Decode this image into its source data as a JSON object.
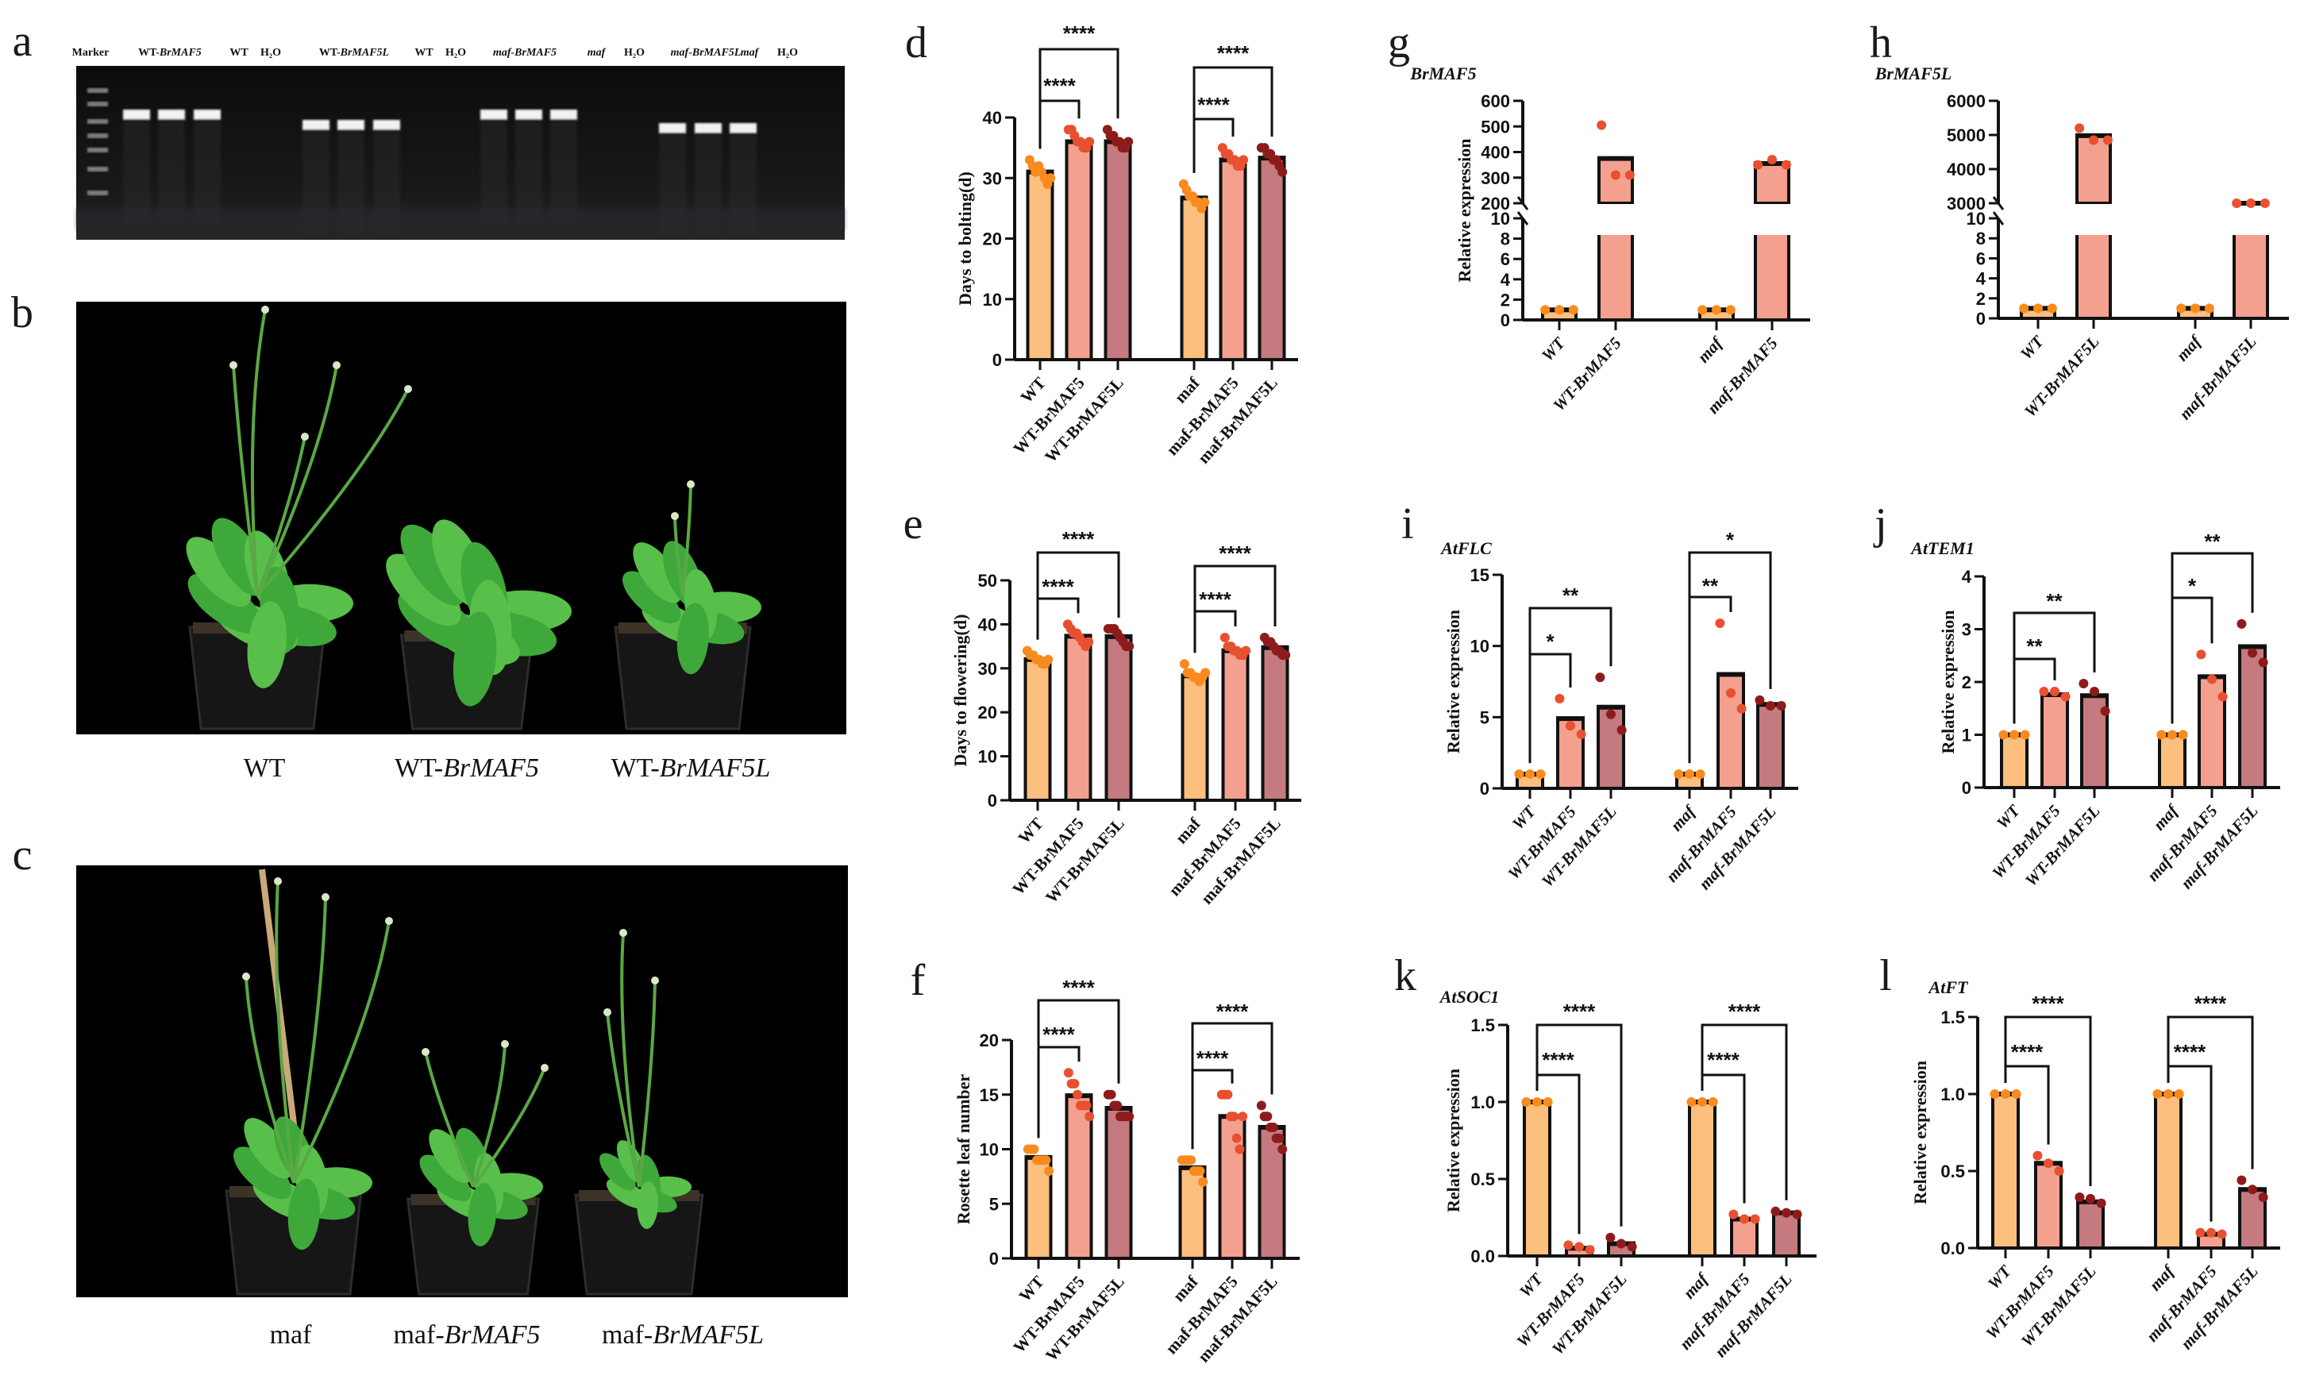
{
  "panel_letters": {
    "a": "a",
    "b": "b",
    "c": "c",
    "d": "d",
    "e": "e",
    "f": "f",
    "g": "g",
    "h": "h",
    "i": "i",
    "j": "j",
    "k": "k",
    "l": "l"
  },
  "gel": {
    "lanes": [
      {
        "plain": "Marker",
        "italic": ""
      },
      {
        "plain": "WT-",
        "italic": "BrMAF5"
      },
      {
        "plain": "WT",
        "italic": ""
      },
      {
        "plain": "H₂O",
        "italic": ""
      },
      {
        "plain": "WT-",
        "italic": "BrMAF5L"
      },
      {
        "plain": "WT",
        "italic": ""
      },
      {
        "plain": "H₂O",
        "italic": ""
      },
      {
        "plain": "",
        "italic": "maf-BrMAF5"
      },
      {
        "plain": "",
        "italic": "maf"
      },
      {
        "plain": "H₂O",
        "italic": ""
      },
      {
        "plain": "",
        "italic": "maf-BrMAF5L"
      },
      {
        "plain": "",
        "italic": "maf"
      },
      {
        "plain": "H₂O",
        "italic": ""
      }
    ]
  },
  "photo_b": {
    "captions": [
      {
        "plain": "WT",
        "italic": ""
      },
      {
        "plain": "WT-",
        "italic": "BrMAF5"
      },
      {
        "plain": "WT-",
        "italic": "BrMAF5L"
      }
    ]
  },
  "photo_c": {
    "captions": [
      {
        "plain": "maf",
        "italic": ""
      },
      {
        "plain": "maf-",
        "italic": "BrMAF5"
      },
      {
        "plain": "maf-",
        "italic": "BrMAF5L"
      }
    ]
  },
  "colors": {
    "bar": [
      "#FDBF7E",
      "#F4A08F",
      "#C47A7E"
    ],
    "dot": [
      "#F98B1E",
      "#E8502F",
      "#8E1B1B"
    ],
    "axis": "#111111"
  },
  "chart_data": [
    {
      "id": "d",
      "type": "bar",
      "title": "",
      "ylabel": "Days to bolting(d)",
      "italic_categories": false,
      "categories": [
        "WT",
        "WT-BrMAF5",
        "WT-BrMAF5L",
        "maf",
        "maf-BrMAF5",
        "maf-BrMAF5L"
      ],
      "values": [
        31,
        36,
        36,
        26.7,
        33,
        33.3
      ],
      "points": [
        [
          33,
          32,
          31,
          32,
          31,
          30,
          29,
          30
        ],
        [
          38,
          38,
          37,
          36,
          36,
          35,
          35,
          36
        ],
        [
          38,
          37,
          37,
          36,
          36,
          35,
          35,
          36
        ],
        [
          29,
          28,
          27,
          27,
          26,
          26,
          25,
          26
        ],
        [
          35,
          34,
          34,
          33,
          33,
          32,
          32,
          33
        ],
        [
          35,
          35,
          34,
          34,
          33,
          33,
          32,
          31
        ]
      ],
      "ylim": [
        0,
        40
      ],
      "yticks": [
        0,
        10,
        20,
        30,
        40
      ],
      "ytick_labels": [
        "0",
        "10",
        "20",
        "30",
        "40"
      ],
      "significance": [
        {
          "from": 0,
          "to": 1,
          "label": "****"
        },
        {
          "from": 0,
          "to": 2,
          "label": "****"
        },
        {
          "from": 3,
          "to": 4,
          "label": "****"
        },
        {
          "from": 3,
          "to": 5,
          "label": "****"
        }
      ]
    },
    {
      "id": "e",
      "type": "bar",
      "title": "",
      "ylabel": "Days to flowering(d)",
      "italic_categories": false,
      "categories": [
        "WT",
        "WT-BrMAF5",
        "WT-BrMAF5L",
        "maf",
        "maf-BrMAF5",
        "maf-BrMAF5L"
      ],
      "values": [
        32,
        37.3,
        37.2,
        28.3,
        34,
        34.7
      ],
      "points": [
        [
          34,
          33,
          33,
          32,
          32,
          31,
          31,
          32
        ],
        [
          40,
          39,
          38,
          38,
          37,
          36,
          35,
          36
        ],
        [
          39,
          39,
          39,
          38,
          37,
          36,
          35,
          35
        ],
        [
          31,
          29,
          29,
          28,
          28,
          27,
          28,
          29
        ],
        [
          37,
          35,
          35,
          34,
          34,
          33,
          33,
          34
        ],
        [
          37,
          36,
          36,
          35,
          34,
          34,
          33,
          33
        ]
      ],
      "ylim": [
        0,
        50
      ],
      "yticks": [
        0,
        10,
        20,
        30,
        40,
        50
      ],
      "ytick_labels": [
        "0",
        "10",
        "20",
        "30",
        "40",
        "50"
      ],
      "significance": [
        {
          "from": 0,
          "to": 1,
          "label": "****"
        },
        {
          "from": 0,
          "to": 2,
          "label": "****"
        },
        {
          "from": 3,
          "to": 4,
          "label": "****"
        },
        {
          "from": 3,
          "to": 5,
          "label": "****"
        }
      ]
    },
    {
      "id": "f",
      "type": "bar",
      "title": "",
      "ylabel": "Rosette leaf number",
      "italic_categories": false,
      "categories": [
        "WT",
        "WT-BrMAF5",
        "WT-BrMAF5L",
        "maf",
        "maf-BrMAF5",
        "maf-BrMAF5L"
      ],
      "values": [
        9.25,
        14.9,
        13.75,
        8.3,
        13,
        12
      ],
      "points": [
        [
          10,
          10,
          10,
          9,
          9,
          9,
          9,
          8
        ],
        [
          17,
          16,
          16,
          15,
          14,
          14,
          14,
          13
        ],
        [
          15,
          15,
          14,
          14,
          13,
          13,
          13,
          13
        ],
        [
          9,
          9,
          9,
          9,
          8,
          8,
          8,
          7
        ],
        [
          15,
          15,
          15,
          13,
          13,
          11,
          10,
          13
        ],
        [
          14,
          13,
          13,
          12,
          12,
          11,
          11,
          10
        ]
      ],
      "ylim": [
        0,
        20
      ],
      "yticks": [
        0,
        5,
        10,
        15,
        20
      ],
      "ytick_labels": [
        "0",
        "5",
        "10",
        "15",
        "20"
      ],
      "significance": [
        {
          "from": 0,
          "to": 1,
          "label": "****"
        },
        {
          "from": 0,
          "to": 2,
          "label": "****"
        },
        {
          "from": 3,
          "to": 4,
          "label": "****"
        },
        {
          "from": 3,
          "to": 5,
          "label": "****"
        }
      ]
    },
    {
      "id": "g",
      "type": "bar",
      "title": "BrMAF5",
      "ylabel": "Relative expression",
      "italic_categories": true,
      "categories": [
        "WT",
        "WT-BrMAF5",
        "maf",
        "maf-BrMAF5"
      ],
      "values": [
        1,
        375,
        1,
        355
      ],
      "points": [
        [
          1,
          1,
          1
        ],
        [
          505,
          310,
          310
        ],
        [
          1,
          1,
          1
        ],
        [
          350,
          370,
          350
        ]
      ],
      "broken_axis": {
        "lower": [
          0,
          10
        ],
        "upper": [
          200,
          600
        ]
      },
      "yticks": [
        0,
        2,
        4,
        6,
        8,
        10,
        200,
        300,
        400,
        500,
        600
      ],
      "ytick_labels": [
        "0",
        "2",
        "4",
        "6",
        "8",
        "10",
        "200",
        "300",
        "400",
        "500",
        "600"
      ],
      "color_index": [
        0,
        1,
        0,
        1
      ],
      "significance": []
    },
    {
      "id": "h",
      "type": "bar",
      "title": "BrMAF5L",
      "ylabel": "",
      "italic_categories": true,
      "categories": [
        "WT",
        "WT-BrMAF5L",
        "maf",
        "maf-BrMAF5L"
      ],
      "values": [
        1,
        4980,
        1,
        3000
      ],
      "points": [
        [
          1,
          1,
          1
        ],
        [
          5200,
          4850,
          4850
        ],
        [
          1,
          1,
          1
        ],
        [
          3000,
          3000,
          3000
        ]
      ],
      "broken_axis": {
        "lower": [
          0,
          10
        ],
        "upper": [
          3000,
          6000
        ]
      },
      "yticks": [
        0,
        2,
        4,
        6,
        8,
        10,
        3000,
        4000,
        5000,
        6000
      ],
      "ytick_labels": [
        "0",
        "2",
        "4",
        "6",
        "8",
        "10",
        "3000",
        "4000",
        "5000",
        "6000"
      ],
      "color_index": [
        0,
        1,
        0,
        1
      ],
      "significance": []
    },
    {
      "id": "i",
      "type": "bar",
      "title": "AtFLC",
      "ylabel": "Relative expression",
      "italic_categories": true,
      "categories": [
        "WT",
        "WT-BrMAF5",
        "WT-BrMAF5L",
        "maf",
        "maf-BrMAF5",
        "maf-BrMAF5L"
      ],
      "values": [
        1,
        4.9,
        5.7,
        1,
        8,
        5.9
      ],
      "points": [
        [
          1,
          1,
          1
        ],
        [
          6.3,
          4.4,
          3.8
        ],
        [
          7.8,
          5.2,
          4.1
        ],
        [
          1,
          1,
          1
        ],
        [
          11.6,
          6.7,
          5.6
        ],
        [
          6.2,
          5.8,
          5.8
        ]
      ],
      "ylim": [
        0,
        15
      ],
      "yticks": [
        0,
        5,
        10,
        15
      ],
      "ytick_labels": [
        "0",
        "5",
        "10",
        "15"
      ],
      "significance": [
        {
          "from": 0,
          "to": 1,
          "label": "*"
        },
        {
          "from": 0,
          "to": 2,
          "label": "**"
        },
        {
          "from": 3,
          "to": 4,
          "label": "**"
        },
        {
          "from": 3,
          "to": 5,
          "label": "*"
        }
      ]
    },
    {
      "id": "j",
      "type": "bar",
      "title": "AtTEM1",
      "ylabel": "Relative expression",
      "italic_categories": true,
      "categories": [
        "WT",
        "WT-BrMAF5",
        "WT-BrMAF5L",
        "maf",
        "maf-BrMAF5",
        "maf-BrMAF5L"
      ],
      "values": [
        1,
        1.76,
        1.74,
        1,
        2.1,
        2.67
      ],
      "points": [
        [
          1,
          1,
          1
        ],
        [
          1.82,
          1.82,
          1.72
        ],
        [
          1.97,
          1.82,
          1.45
        ],
        [
          1,
          1,
          1
        ],
        [
          2.52,
          2.05,
          1.72
        ],
        [
          3.1,
          2.55,
          2.37
        ]
      ],
      "ylim": [
        0,
        4
      ],
      "yticks": [
        0,
        1,
        2,
        3,
        4
      ],
      "ytick_labels": [
        "0",
        "1",
        "2",
        "3",
        "4"
      ],
      "significance": [
        {
          "from": 0,
          "to": 1,
          "label": "**"
        },
        {
          "from": 0,
          "to": 2,
          "label": "**"
        },
        {
          "from": 3,
          "to": 4,
          "label": "*"
        },
        {
          "from": 3,
          "to": 5,
          "label": "**"
        }
      ]
    },
    {
      "id": "k",
      "type": "bar",
      "title": "AtSOC1",
      "ylabel": "Relative expression",
      "italic_categories": true,
      "categories": [
        "WT",
        "WT-BrMAF5",
        "WT-BrMAF5L",
        "maf",
        "maf-BrMAF5",
        "maf-BrMAF5L"
      ],
      "values": [
        1,
        0.05,
        0.08,
        1,
        0.24,
        0.28
      ],
      "points": [
        [
          1,
          1,
          1
        ],
        [
          0.07,
          0.06,
          0.04
        ],
        [
          0.12,
          0.08,
          0.06
        ],
        [
          1,
          1,
          1
        ],
        [
          0.27,
          0.24,
          0.24
        ],
        [
          0.29,
          0.28,
          0.27
        ]
      ],
      "ylim": [
        0,
        1.5
      ],
      "yticks": [
        0,
        0.5,
        1,
        1.5
      ],
      "ytick_labels": [
        "0.0",
        "0.5",
        "1.0",
        "1.5"
      ],
      "significance": [
        {
          "from": 0,
          "to": 1,
          "label": "****"
        },
        {
          "from": 0,
          "to": 2,
          "label": "****"
        },
        {
          "from": 3,
          "to": 4,
          "label": "****"
        },
        {
          "from": 3,
          "to": 5,
          "label": "****"
        }
      ]
    },
    {
      "id": "l",
      "type": "bar",
      "title": "AtFT",
      "ylabel": "Relative expression",
      "italic_categories": true,
      "categories": [
        "WT",
        "WT-BrMAF5",
        "WT-BrMAF5L",
        "maf",
        "maf-BrMAF5",
        "maf-BrMAF5L"
      ],
      "values": [
        1,
        0.55,
        0.3,
        1,
        0.09,
        0.38
      ],
      "points": [
        [
          1,
          1,
          1
        ],
        [
          0.6,
          0.55,
          0.5
        ],
        [
          0.33,
          0.32,
          0.29
        ],
        [
          1,
          1,
          1
        ],
        [
          0.1,
          0.1,
          0.09
        ],
        [
          0.44,
          0.38,
          0.33
        ]
      ],
      "ylim": [
        0,
        1.5
      ],
      "yticks": [
        0,
        0.5,
        1,
        1.5
      ],
      "ytick_labels": [
        "0.0",
        "0.5",
        "1.0",
        "1.5"
      ],
      "significance": [
        {
          "from": 0,
          "to": 1,
          "label": "****"
        },
        {
          "from": 0,
          "to": 2,
          "label": "****"
        },
        {
          "from": 3,
          "to": 4,
          "label": "****"
        },
        {
          "from": 3,
          "to": 5,
          "label": "****"
        }
      ]
    }
  ]
}
